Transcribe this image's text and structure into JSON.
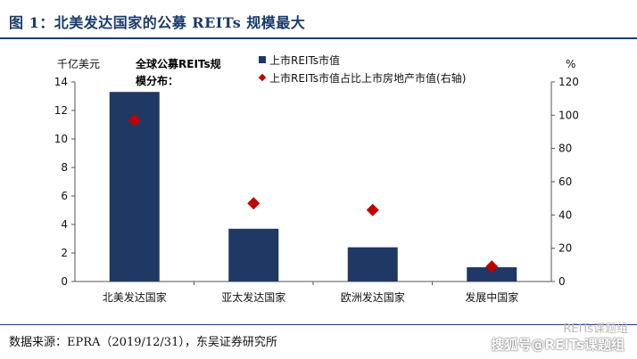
{
  "figure": {
    "title": "图 1：北美发达国家的公募 REITs 规模最大",
    "source": "数据来源：EPRA（2019/12/31），东吴证券研究所",
    "watermark_top": "REITs课题组",
    "watermark_bottom": "搜狐号@REITs课题组"
  },
  "chart_data": {
    "type": "bar",
    "title": "",
    "annotation_line1": "全球公募REITs规",
    "annotation_line2": "模分布：",
    "categories": [
      "北美发达国家",
      "亚太发达国家",
      "欧洲发达国家",
      "发展中国家"
    ],
    "series": [
      {
        "name": "上市REITs市值",
        "type": "bar",
        "axis": "left",
        "color": "#1f3864",
        "values": [
          13.3,
          3.7,
          2.4,
          1.0
        ]
      },
      {
        "name": "上市REITs市值占比上市房地产市值(右轴)",
        "type": "scatter",
        "marker": "diamond",
        "axis": "right",
        "color": "#c00000",
        "values": [
          97,
          47,
          43,
          9
        ]
      }
    ],
    "left_axis": {
      "unit": "千亿美元",
      "ylim": [
        0,
        14
      ],
      "ticks": [
        "0",
        "2",
        "4",
        "6",
        "8",
        "10",
        "12",
        "14"
      ]
    },
    "right_axis": {
      "unit": "%",
      "ylim": [
        0,
        120
      ],
      "ticks": [
        "0",
        "20",
        "40",
        "60",
        "80",
        "100",
        "120"
      ]
    },
    "legend": "top-right",
    "grid": false
  }
}
